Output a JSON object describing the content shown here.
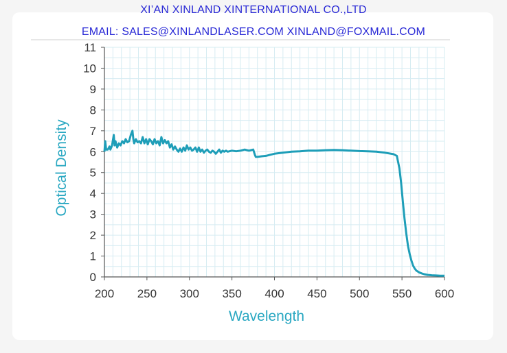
{
  "header": {
    "company": "XI’AN XINLAND XINTERNATIONAL CO.,LTD",
    "contact": "EMAIL: SALES@XINLANDLASER.COM  XINLAND@FOXMAIL.COM"
  },
  "colors": {
    "header_text": "#2a2ad6",
    "line": "#1e9eb8",
    "grid": "#d6ecf2",
    "axis_title": "#2aa8c2"
  },
  "chart_data": {
    "type": "line",
    "title": "",
    "xlabel": "Wavelength",
    "ylabel": "Optical Density",
    "xlim": [
      200,
      600
    ],
    "ylim": [
      0,
      11
    ],
    "xticks": [
      "200",
      "250",
      "300",
      "350",
      "400",
      "450",
      "500",
      "550",
      "600"
    ],
    "yticks": [
      "0",
      "1",
      "2",
      "3",
      "4",
      "5",
      "6",
      "7",
      "8",
      "9",
      "10",
      "11"
    ],
    "grid": true,
    "series": [
      {
        "x": [
          200,
          201,
          202,
          204,
          206,
          207,
          209,
          211,
          212,
          213,
          215,
          217,
          219,
          221,
          223,
          225,
          227,
          229,
          231,
          232,
          233,
          234,
          235,
          237,
          239,
          241,
          243,
          245,
          247,
          249,
          251,
          253,
          255,
          257,
          259,
          261,
          263,
          265,
          267,
          269,
          271,
          273,
          275,
          277,
          279,
          281,
          283,
          285,
          287,
          289,
          291,
          293,
          295,
          297,
          299,
          301,
          303,
          305,
          307,
          309,
          311,
          313,
          315,
          317,
          319,
          321,
          323,
          325,
          327,
          329,
          331,
          333,
          335,
          337,
          339,
          341,
          343,
          345,
          350,
          355,
          360,
          365,
          370,
          375,
          377,
          378,
          380,
          385,
          390,
          395,
          400,
          410,
          420,
          430,
          440,
          450,
          460,
          470,
          480,
          490,
          500,
          510,
          520,
          530,
          540,
          544,
          545,
          547,
          549,
          551,
          553,
          555,
          557,
          559,
          561,
          563,
          565,
          567,
          570,
          573,
          576,
          580,
          585,
          590,
          595,
          600
        ],
        "y": [
          6.0,
          6.5,
          6.1,
          6.1,
          6.25,
          6.1,
          6.3,
          6.8,
          6.3,
          6.5,
          6.2,
          6.4,
          6.3,
          6.5,
          6.4,
          6.6,
          6.45,
          6.5,
          6.8,
          6.9,
          7.0,
          6.6,
          6.4,
          6.6,
          6.45,
          6.5,
          6.4,
          6.7,
          6.4,
          6.6,
          6.35,
          6.6,
          6.5,
          6.35,
          6.6,
          6.4,
          6.5,
          6.3,
          6.7,
          6.4,
          6.55,
          6.4,
          6.5,
          6.2,
          6.35,
          6.1,
          6.25,
          6.1,
          6.0,
          6.15,
          6.0,
          6.2,
          6.05,
          6.3,
          6.1,
          6.2,
          6.05,
          6.1,
          6.2,
          6.0,
          6.2,
          6.0,
          6.1,
          5.95,
          6.05,
          6.1,
          6.0,
          5.95,
          6.05,
          6.0,
          5.9,
          6.0,
          6.1,
          5.95,
          6.05,
          6.0,
          6.05,
          6.0,
          6.05,
          6.02,
          6.05,
          6.1,
          6.05,
          6.1,
          5.85,
          5.75,
          5.75,
          5.78,
          5.8,
          5.85,
          5.9,
          5.95,
          6.0,
          6.02,
          6.05,
          6.05,
          6.07,
          6.08,
          6.07,
          6.05,
          6.03,
          6.02,
          6.0,
          5.95,
          5.88,
          5.8,
          5.6,
          5.2,
          4.5,
          3.6,
          2.8,
          2.1,
          1.5,
          1.1,
          0.8,
          0.55,
          0.4,
          0.3,
          0.22,
          0.17,
          0.13,
          0.1,
          0.08,
          0.07,
          0.06,
          0.06
        ]
      }
    ]
  }
}
